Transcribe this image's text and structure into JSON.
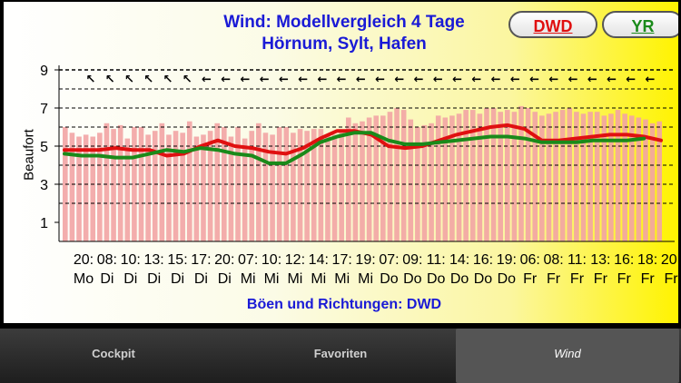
{
  "title_line1": "Wind: Modellvergleich 4 Tage",
  "title_line2": "Hörnum, Sylt, Hafen",
  "buttons": {
    "dwd": "DWD",
    "yr": "YR"
  },
  "subtitle": "Böen und Richtungen: DWD",
  "tabs": {
    "cockpit": "Cockpit",
    "favoriten": "Favoriten",
    "wind": "Wind"
  },
  "colors": {
    "dwd": "#e01010",
    "yr": "#1a8a1a",
    "title": "#1a1ad6",
    "gust": "#f2a4a4"
  },
  "chart_data": {
    "type": "line",
    "ylabel": "Beaufort",
    "ylim": [
      0,
      9
    ],
    "yticks": [
      1,
      3,
      5,
      7,
      9
    ],
    "x_time_labels": [
      "20:",
      "08:",
      "10:",
      "13:",
      "15:",
      "17:",
      "20:",
      "07:",
      "10:",
      "12:",
      "14:",
      "17:",
      "19:",
      "07:",
      "09:",
      "11:",
      "14:",
      "16:",
      "19:",
      "06:",
      "08:",
      "11:",
      "13:",
      "16:",
      "18:",
      "20:"
    ],
    "x_day_labels": [
      "Mo",
      "Di",
      "Di",
      "Di",
      "Di",
      "Di",
      "Di",
      "Mi",
      "Mi",
      "Mi",
      "Mi",
      "Mi",
      "Mi",
      "Do",
      "Do",
      "Do",
      "Do",
      "Do",
      "Do",
      "Fr",
      "Fr",
      "Fr",
      "Fr",
      "Fr",
      "Fr",
      "Fr"
    ],
    "series": [
      {
        "name": "DWD",
        "color": "#e01010",
        "values": [
          4.8,
          4.8,
          4.8,
          4.9,
          4.8,
          4.8,
          4.5,
          4.6,
          5.0,
          5.3,
          5.0,
          4.9,
          4.7,
          4.6,
          4.9,
          5.4,
          5.8,
          5.8,
          5.6,
          5.0,
          4.9,
          5.0,
          5.3,
          5.6,
          5.8,
          6.0,
          6.1,
          5.9,
          5.3,
          5.3,
          5.4,
          5.5,
          5.6,
          5.6,
          5.5,
          5.3
        ]
      },
      {
        "name": "YR",
        "color": "#1a8a1a",
        "values": [
          4.6,
          4.5,
          4.5,
          4.4,
          4.4,
          4.6,
          4.8,
          4.7,
          4.9,
          4.8,
          4.6,
          4.5,
          4.1,
          4.1,
          4.6,
          5.2,
          5.5,
          5.7,
          5.7,
          5.3,
          5.1,
          5.1,
          5.2,
          5.3,
          5.4,
          5.5,
          5.5,
          5.4,
          5.2,
          5.2,
          5.2,
          5.3,
          5.3,
          5.3,
          5.4,
          null
        ]
      }
    ],
    "gusts": [
      6.0,
      5.7,
      5.5,
      5.6,
      5.5,
      5.7,
      6.2,
      5.9,
      6.1,
      5.4,
      6.0,
      6.0,
      5.6,
      5.8,
      6.2,
      5.6,
      5.8,
      5.7,
      6.3,
      5.5,
      5.6,
      5.8,
      6.2,
      6.0,
      5.5,
      6.0,
      5.4,
      5.8,
      6.2,
      5.7,
      5.6,
      6.0,
      6.0,
      5.7,
      5.9,
      5.8,
      5.9,
      5.9,
      5.6,
      5.6,
      5.8,
      6.5,
      6.2,
      6.3,
      6.5,
      6.6,
      6.6,
      6.8,
      7.0,
      6.9,
      6.4,
      6.0,
      6.1,
      6.2,
      6.6,
      6.5,
      6.6,
      6.7,
      6.9,
      6.9,
      6.7,
      7.0,
      7.0,
      6.8,
      6.9,
      6.8,
      7.1,
      7.0,
      6.8,
      6.6,
      6.7,
      6.8,
      6.9,
      7.0,
      6.8,
      6.7,
      6.8,
      6.8,
      6.6,
      6.7,
      6.9,
      6.7,
      6.6,
      6.5,
      6.4,
      6.2,
      6.3
    ],
    "direction_arrows": 30,
    "grid": true
  }
}
